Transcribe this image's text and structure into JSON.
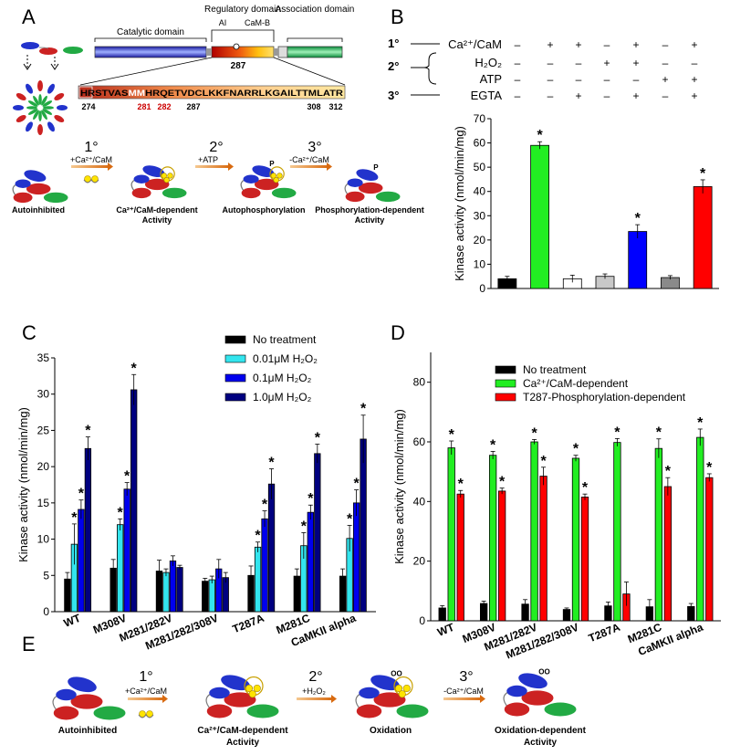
{
  "panels": {
    "A": {
      "letter": "A",
      "domains": {
        "catalytic": "Catalytic domain",
        "regulatory": "Regulatory domain",
        "association": "Association domain",
        "ai": "AI",
        "camb": "CaM-B"
      },
      "marker": "287",
      "sequence": {
        "prefix": "HRSTVAS",
        "mm": "MM",
        "suffix": "HRQETVDCLKKFNARRLKGAILTTMLATR"
      },
      "numbers": {
        "n274": "274",
        "n281": "281",
        "n282": "282",
        "n287": "287",
        "n308": "308",
        "n312": "312"
      },
      "steps": {
        "s1": "1°",
        "s2": "2°",
        "s3": "3°"
      },
      "arrows": {
        "a1": "+Ca²⁺/CaM",
        "a2": "+ATP",
        "a3": "-Ca²⁺/CaM"
      },
      "states": {
        "t1": "Autoinhibited",
        "t2a": "Ca²⁺/CaM-dependent",
        "t2b": "Activity",
        "t3": "Autophosphorylation",
        "t4a": "Phosphorylation-dependent",
        "t4b": "Activity"
      },
      "p_label": "P"
    },
    "E": {
      "letter": "E",
      "steps": {
        "s1": "1°",
        "s2": "2°",
        "s3": "3°"
      },
      "arrows": {
        "a1": "+Ca²⁺/CaM",
        "a2": "+H₂O₂",
        "a3": "-Ca²⁺/CaM"
      },
      "states": {
        "t1": "Autoinhibited",
        "t2a": "Ca²⁺/CaM-dependent",
        "t2b": "Activity",
        "t3": "Oxidation",
        "t4a": "Oxidation-dependent",
        "t4b": "Activity"
      },
      "ox_label": "OO"
    }
  },
  "chart_data": [
    {
      "panel": "B",
      "type": "bar",
      "treatment_table": {
        "rows": [
          {
            "step": "1°",
            "label": "Ca²⁺/CaM",
            "signs": [
              "–",
              "+",
              "+",
              "–",
              "+",
              "–",
              "+"
            ]
          },
          {
            "step": "2°",
            "label": "H₂O₂",
            "signs": [
              "–",
              "–",
              "–",
              "+",
              "+",
              "–",
              "–"
            ]
          },
          {
            "step": "",
            "label": "ATP",
            "signs": [
              "–",
              "–",
              "–",
              "–",
              "–",
              "+",
              "+"
            ]
          },
          {
            "step": "3°",
            "label": "EGTA",
            "signs": [
              "–",
              "–",
              "+",
              "–",
              "+",
              "–",
              "+"
            ]
          }
        ]
      },
      "values": [
        4.0,
        59.0,
        4.0,
        5.0,
        23.5,
        4.5,
        42.0
      ],
      "errors": [
        1.0,
        1.5,
        1.5,
        1.0,
        2.8,
        0.8,
        2.8
      ],
      "colors": [
        "#000000",
        "#22ee22",
        "#ffffff",
        "#c8c8c8",
        "#0000ff",
        "#8a8a8a",
        "#ff0000"
      ],
      "significant": [
        false,
        true,
        false,
        false,
        true,
        false,
        true
      ],
      "star": "*",
      "ylabel": "Kinase activity (nmol/min/mg)",
      "ylim": [
        0,
        70
      ],
      "yticks": [
        "0",
        "10",
        "20",
        "30",
        "40",
        "50",
        "60",
        "70"
      ]
    },
    {
      "panel": "C",
      "type": "bar",
      "categories": [
        "WT",
        "M308V",
        "M281/282V",
        "M281/282/308V",
        "T287A",
        "M281C",
        "CaMKII alpha"
      ],
      "series": [
        {
          "name": "No treatment",
          "color": "#000000",
          "values": [
            4.5,
            6.0,
            5.6,
            4.2,
            5.0,
            4.9,
            4.9
          ],
          "errors": [
            0.9,
            1.2,
            1.5,
            0.4,
            1.3,
            1.0,
            1.0
          ],
          "stars": [
            false,
            false,
            false,
            false,
            false,
            false,
            false
          ]
        },
        {
          "name": "0.01μM H₂O₂",
          "color": "#33e5ee",
          "values": [
            9.3,
            12.0,
            5.4,
            4.4,
            8.9,
            9.1,
            10.1
          ],
          "errors": [
            2.8,
            0.8,
            0.5,
            0.5,
            0.7,
            1.8,
            1.8
          ],
          "stars": [
            true,
            true,
            false,
            false,
            true,
            true,
            true
          ]
        },
        {
          "name": "0.1μM H₂O₂",
          "color": "#0000ee",
          "values": [
            14.1,
            16.9,
            7.0,
            5.9,
            12.8,
            13.7,
            15.0
          ],
          "errors": [
            1.3,
            0.9,
            0.7,
            1.3,
            1.1,
            1.0,
            1.8
          ],
          "stars": [
            true,
            true,
            false,
            false,
            true,
            true,
            true
          ]
        },
        {
          "name": "1.0μM H₂O₂",
          "color": "#000080",
          "values": [
            22.5,
            30.6,
            6.1,
            4.7,
            17.6,
            21.8,
            23.8
          ],
          "errors": [
            1.6,
            2.1,
            0.3,
            0.7,
            2.1,
            1.3,
            3.3
          ],
          "stars": [
            true,
            true,
            false,
            false,
            true,
            true,
            true
          ]
        }
      ],
      "star": "*",
      "ylabel": "Kinase activity (nmol/min/mg)",
      "ylim": [
        0,
        35
      ],
      "yticks": [
        "0",
        "5",
        "10",
        "15",
        "20",
        "25",
        "30",
        "35"
      ]
    },
    {
      "panel": "D",
      "type": "bar",
      "categories": [
        "WT",
        "M308V",
        "M281/282V",
        "M281/282/308V",
        "T287A",
        "M281C",
        "CaMKII alpha"
      ],
      "series": [
        {
          "name": "No treatment",
          "color": "#000000",
          "values": [
            4.3,
            5.8,
            5.6,
            3.8,
            5.0,
            4.7,
            4.8
          ],
          "errors": [
            0.8,
            0.8,
            1.5,
            0.5,
            1.3,
            2.4,
            1.0
          ],
          "stars": [
            false,
            false,
            false,
            false,
            false,
            false,
            false
          ]
        },
        {
          "name": "Ca²⁺/CaM-dependent",
          "color": "#22ee22",
          "values": [
            58.0,
            55.5,
            60.0,
            54.5,
            59.8,
            57.8,
            61.5
          ],
          "errors": [
            2.3,
            1.3,
            0.8,
            1.0,
            1.3,
            3.2,
            2.8
          ],
          "stars": [
            true,
            true,
            true,
            true,
            true,
            true,
            true
          ]
        },
        {
          "name": "T287-Phosphorylation-dependent",
          "color": "#ff0000",
          "values": [
            42.5,
            43.5,
            48.5,
            41.5,
            9.0,
            45.0,
            48.0
          ],
          "errors": [
            1.2,
            1.0,
            3.0,
            1.0,
            4.0,
            3.0,
            1.3
          ],
          "stars": [
            true,
            true,
            true,
            true,
            false,
            true,
            true
          ]
        }
      ],
      "star": "*",
      "ylabel": "Kinase activity (nmol/min/mg)",
      "ylim": [
        0,
        90
      ],
      "yticks": [
        "0",
        "20",
        "40",
        "60",
        "80"
      ]
    }
  ],
  "panel_letters": {
    "B": "B",
    "C": "C",
    "D": "D"
  }
}
